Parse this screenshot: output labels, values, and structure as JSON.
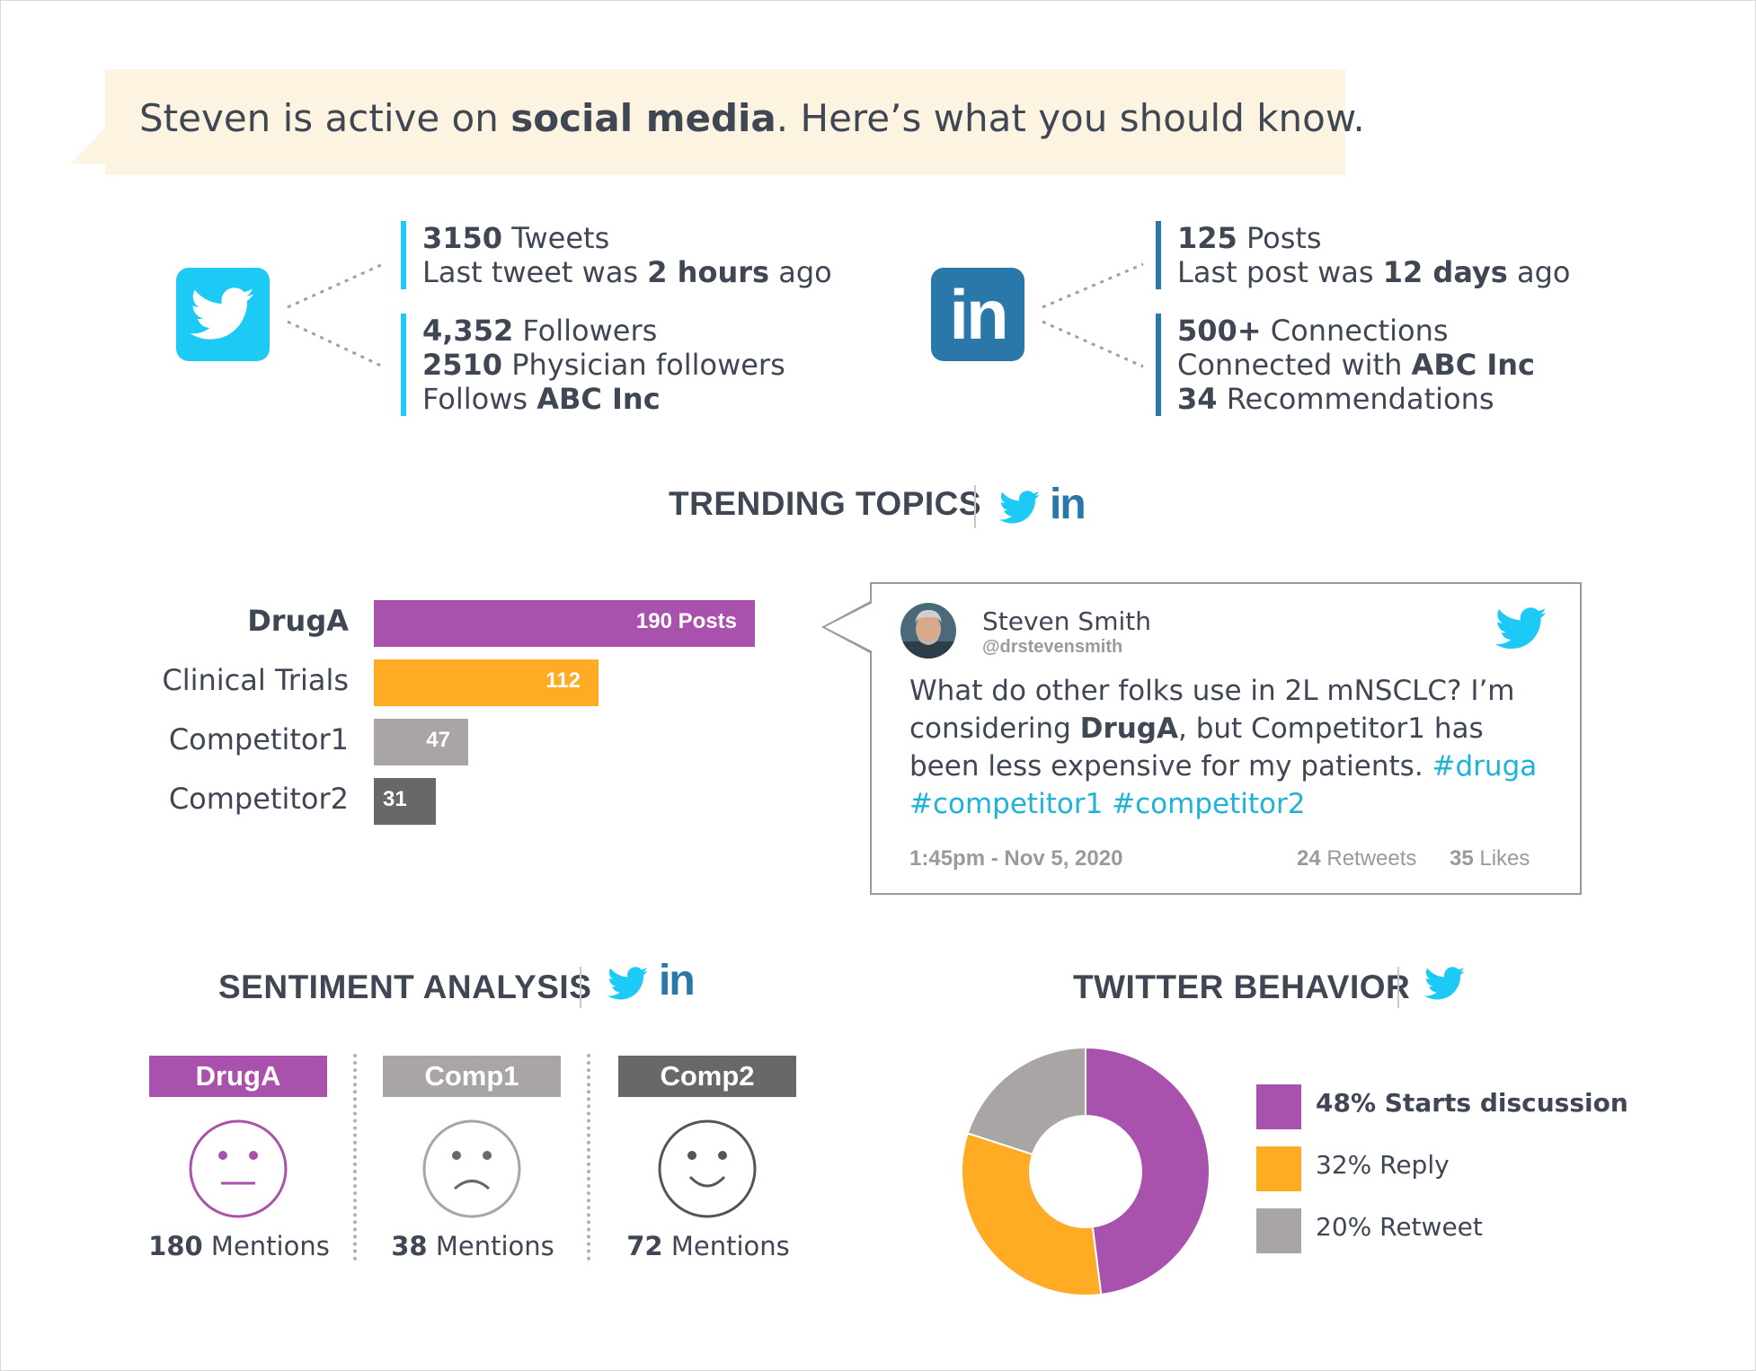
{
  "header": {
    "prefix": "Steven is active on ",
    "emphasis": "social media",
    "suffix": ". Here’s what you should know."
  },
  "twitter_stats": {
    "tweets_count": "3150",
    "tweets_label": " Tweets",
    "last_prefix": "Last tweet was ",
    "last_value": "2 hours",
    "last_suffix": " ago",
    "followers_count": "4,352",
    "followers_label": " Followers",
    "physician_count": "2510",
    "physician_label": " Physician followers",
    "follows_prefix": "Follows ",
    "follows_value": "ABC Inc"
  },
  "linkedin_stats": {
    "posts_count": "125",
    "posts_label": " Posts",
    "last_prefix": "Last post was ",
    "last_value": "12 days",
    "last_suffix": " ago",
    "connections_count": "500+",
    "connections_label": " Connections",
    "connected_prefix": "Connected with ",
    "connected_value": "ABC Inc",
    "recs_count": "34",
    "recs_label": " Recommendations"
  },
  "icons": {
    "twitter": "twitter-bird-icon",
    "linkedin": "linkedin-icon",
    "linkedin_glyph": "in"
  },
  "trending": {
    "title": "TRENDING TOPICS",
    "items": [
      {
        "label": "DrugA",
        "value": 190,
        "display": "190 Posts",
        "color": "#a852ad"
      },
      {
        "label": "Clinical Trials",
        "value": 112,
        "display": "112",
        "color": "#ffab24"
      },
      {
        "label": "Competitor1",
        "value": 47,
        "display": "47",
        "color": "#a9a5a5"
      },
      {
        "label": "Competitor2",
        "value": 31,
        "display": "31",
        "color": "#696767"
      }
    ]
  },
  "tweet": {
    "name": "Steven Smith",
    "handle": "@drstevensmith",
    "body_1": "What do other folks use in 2L mNSCLC? I’m considering ",
    "body_bold": "DrugA",
    "body_2": ", but Competitor1 has been less expensive for my patients. ",
    "tag_1": "#druga",
    "tag_2": "#competitor1",
    "tag_3": "#competitor2",
    "timestamp": "1:45pm - Nov 5, 2020",
    "retweets_count": "24",
    "retweets_label": " Retweets",
    "likes_count": "35",
    "likes_label": " Likes"
  },
  "sentiment": {
    "title": "SENTIMENT ANALYSIS",
    "items": [
      {
        "label": "DrugA",
        "count": "180",
        "suffix": " Mentions",
        "face": "neutral-face-icon",
        "color": "#a852ad"
      },
      {
        "label": "Comp1",
        "count": "38",
        "suffix": " Mentions",
        "face": "sad-face-icon",
        "color": "#a9a5a5"
      },
      {
        "label": "Comp2",
        "count": "72",
        "suffix": " Mentions",
        "face": "happy-face-icon",
        "color": "#696767"
      }
    ]
  },
  "behavior": {
    "title": "TWITTER BEHAVIOR",
    "legend": [
      {
        "text": "48% Starts discussion",
        "color": "#a852ad"
      },
      {
        "text": "32% Reply",
        "color": "#ffab24"
      },
      {
        "text": "20% Retweet",
        "color": "#a9a5a5"
      }
    ]
  },
  "chart_data": [
    {
      "type": "bar",
      "title": "TRENDING TOPICS",
      "categories": [
        "DrugA",
        "Clinical Trials",
        "Competitor1",
        "Competitor2"
      ],
      "values": [
        190,
        112,
        47,
        31
      ],
      "unit": "Posts",
      "colors": [
        "#a852ad",
        "#ffab24",
        "#a9a5a5",
        "#696767"
      ]
    },
    {
      "type": "pie",
      "title": "TWITTER BEHAVIOR",
      "categories": [
        "Starts discussion",
        "Reply",
        "Retweet"
      ],
      "values": [
        48,
        32,
        20
      ],
      "colors": [
        "#a852ad",
        "#ffab24",
        "#a9a5a5"
      ]
    }
  ]
}
